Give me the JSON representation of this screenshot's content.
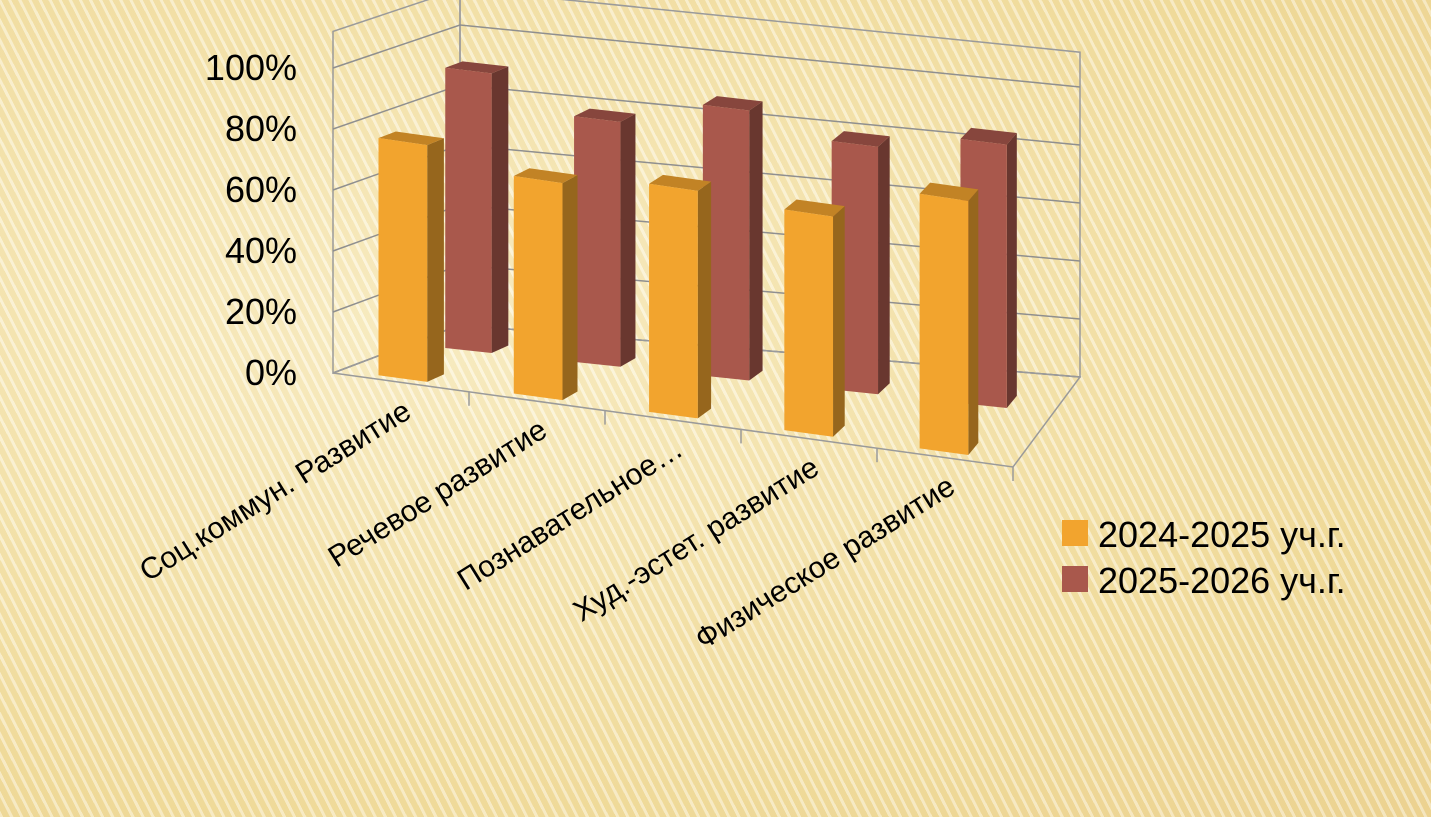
{
  "chart_data": {
    "type": "bar",
    "style": "3d-clustered-column",
    "categories": [
      "Соц.коммун. Развитие",
      "Речевое развитие",
      "Познавательное…",
      "Худ.-эстет. развитие",
      "Физическое развитие"
    ],
    "series": [
      {
        "name": "2024-2025 уч.г.",
        "values": [
          78,
          72,
          76,
          74,
          86
        ],
        "color": "#f2a42e"
      },
      {
        "name": "2025-2026 уч.г.",
        "values": [
          93,
          82,
          91,
          84,
          90
        ],
        "color": "#a9584c"
      }
    ],
    "yticks": [
      "0%",
      "20%",
      "40%",
      "60%",
      "80%",
      "100%"
    ],
    "ylim": [
      0,
      100
    ],
    "grid": true,
    "legend_position": "right"
  }
}
